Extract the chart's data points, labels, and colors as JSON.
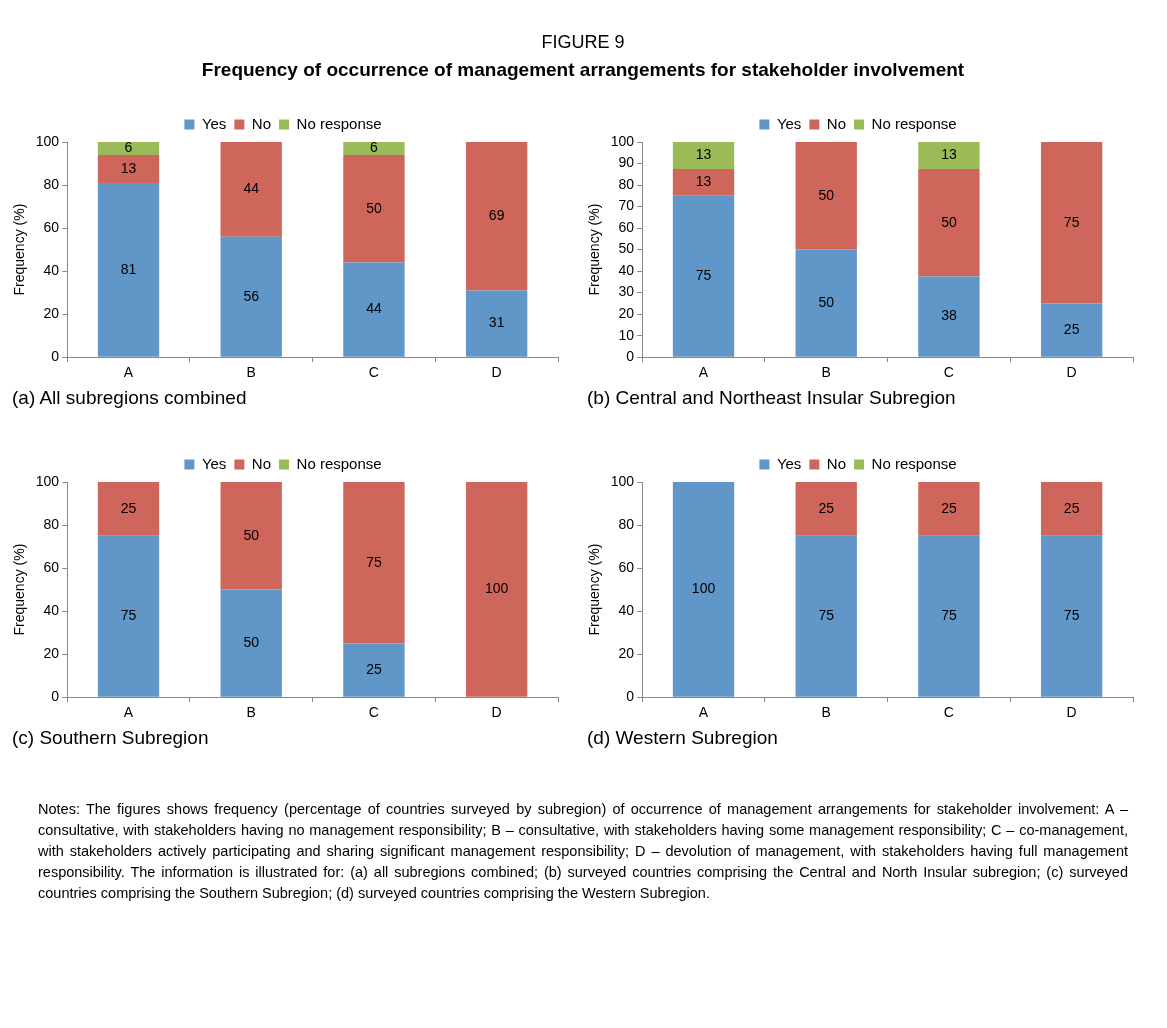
{
  "chart_data": [
    {
      "type": "bar",
      "title": "(a) All subregions combined",
      "ylabel": "Frequency (%)",
      "stacked": true,
      "categories": [
        "A",
        "B",
        "C",
        "D"
      ],
      "ylim": [
        0,
        100
      ],
      "yticks": [
        0,
        20,
        40,
        60,
        80,
        100
      ],
      "legend": "top",
      "data_labels": true,
      "annotations": [
        "FIGURE 9",
        "Frequency of occurrence of management arrangements for stakeholder involvement",
        "Notes: The figures shows frequency (percentage of countries surveyed by subregion) of occurrence of management arrangements for stakeholder involvement: A – consultative, with stakeholders having no management responsibility; B – consultative, with stakeholders having some management responsibility; C – co-management, with stakeholders actively participating and sharing significant management responsibility; D – devolution of management, with stakeholders having full management responsibility. The information is illustrated for: (a) all subregions combined; (b) surveyed countries comprising the Central and North Insular subregion; (c) surveyed countries comprising the Southern Subregion; (d) surveyed countries comprising the Western Subregion."
      ],
      "series": [
        {
          "name": "Yes",
          "color": "#6096c8",
          "values": [
            81,
            56,
            44,
            31
          ]
        },
        {
          "name": "No",
          "color": "#cf665b",
          "values": [
            13,
            44,
            50,
            69
          ]
        },
        {
          "name": "No response",
          "color": "#9bbb59",
          "values": [
            6,
            null,
            6,
            null
          ]
        }
      ]
    },
    {
      "type": "bar",
      "title": "(b) Central and Northeast Insular Subregion",
      "ylabel": "Frequency (%)",
      "stacked": true,
      "categories": [
        "A",
        "B",
        "C",
        "D"
      ],
      "ylim": [
        0,
        100
      ],
      "yticks": [
        0,
        10,
        20,
        30,
        40,
        50,
        60,
        70,
        80,
        90,
        100
      ],
      "legend": "top",
      "series": [
        {
          "name": "Yes",
          "color": "#6096c8",
          "values": [
            75,
            50,
            37.5,
            25
          ],
          "value_labels": [
            "75",
            "50",
            "38",
            "25"
          ]
        },
        {
          "name": "No",
          "color": "#cf665b",
          "values": [
            12.5,
            50,
            50,
            75
          ],
          "value_labels": [
            "13",
            "50",
            "50",
            "75"
          ]
        },
        {
          "name": "No response",
          "color": "#9bbb59",
          "values": [
            12.5,
            null,
            12.5,
            null
          ],
          "value_labels": [
            "13",
            null,
            "13",
            null
          ]
        }
      ]
    },
    {
      "type": "bar",
      "title": "(c) Southern Subregion",
      "ylabel": "Frequency (%)",
      "stacked": true,
      "categories": [
        "A",
        "B",
        "C",
        "D"
      ],
      "ylim": [
        0,
        100
      ],
      "yticks": [
        0,
        20,
        40,
        60,
        80,
        100
      ],
      "legend": "top",
      "data_labels": true,
      "series": [
        {
          "name": "Yes",
          "color": "#6096c8",
          "values": [
            75,
            50,
            25,
            null
          ]
        },
        {
          "name": "No",
          "color": "#cf665b",
          "values": [
            25,
            50,
            75,
            100
          ]
        },
        {
          "name": "No response",
          "color": "#9bbb59",
          "values": [
            null,
            null,
            null,
            null
          ]
        }
      ]
    },
    {
      "type": "bar",
      "title": "(d) Western Subregion",
      "ylabel": "Frequency (%)",
      "stacked": true,
      "categories": [
        "A",
        "B",
        "C",
        "D"
      ],
      "ylim": [
        0,
        100
      ],
      "yticks": [
        0,
        20,
        40,
        60,
        80,
        100
      ],
      "legend": "top",
      "data_labels": true,
      "series": [
        {
          "name": "Yes",
          "color": "#6096c8",
          "values": [
            100,
            75,
            75,
            75
          ]
        },
        {
          "name": "No",
          "color": "#cf665b",
          "values": [
            null,
            25,
            25,
            25
          ]
        },
        {
          "name": "No response",
          "color": "#9bbb59",
          "values": [
            null,
            null,
            null,
            null
          ]
        }
      ]
    }
  ]
}
